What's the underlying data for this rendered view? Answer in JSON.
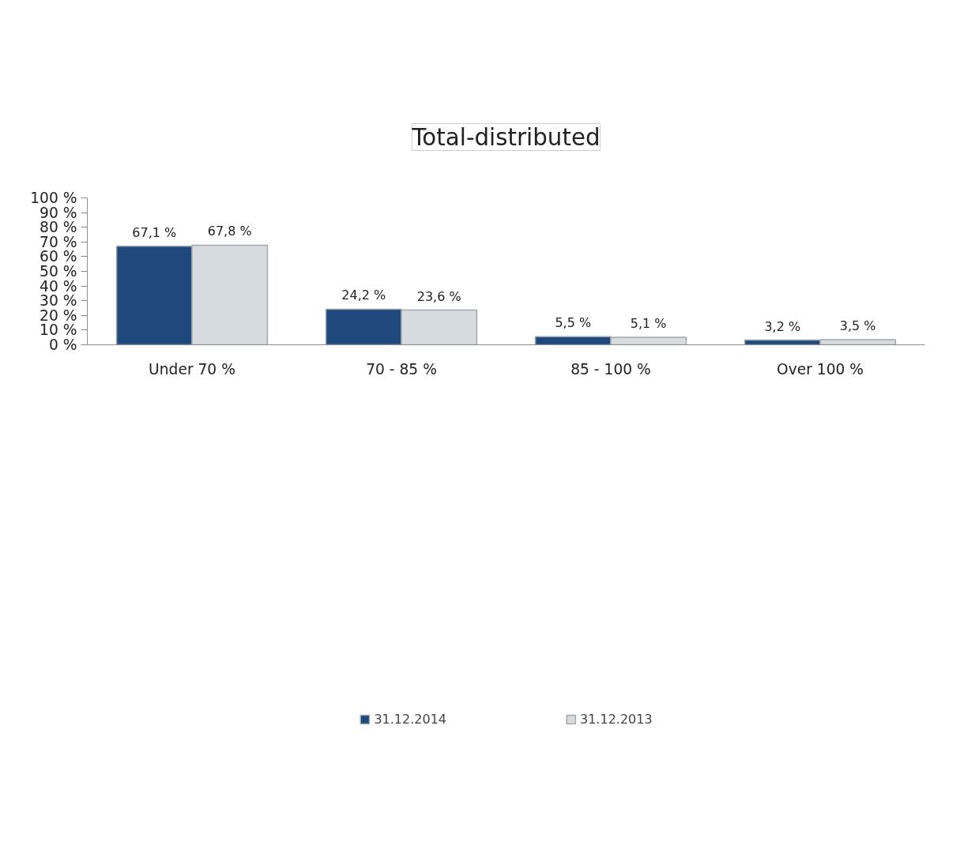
{
  "chart_data": {
    "type": "bar",
    "title": "Total-distributed",
    "categories": [
      "Under 70 %",
      "70 - 85 %",
      "85 - 100 %",
      "Over 100 %"
    ],
    "series": [
      {
        "name": "31.12.2014",
        "color": "#1f497d",
        "values": [
          67.1,
          24.2,
          5.5,
          3.2
        ],
        "value_labels": [
          "67,1 %",
          "24,2 %",
          "5,5 %",
          "3,2 %"
        ]
      },
      {
        "name": "31.12.2013",
        "color": "#d6dbdf",
        "values": [
          67.8,
          23.6,
          5.1,
          3.5
        ],
        "value_labels": [
          "67,8 %",
          "23,6 %",
          "5,1 %",
          "3,5 %"
        ]
      }
    ],
    "ylim": [
      0,
      100
    ],
    "yticks": [
      {
        "value": 0,
        "label": "0 %"
      },
      {
        "value": 10,
        "label": "10 %"
      },
      {
        "value": 20,
        "label": "20 %"
      },
      {
        "value": 30,
        "label": "30 %"
      },
      {
        "value": 40,
        "label": "40 %"
      },
      {
        "value": 50,
        "label": "50 %"
      },
      {
        "value": 60,
        "label": "60 %"
      },
      {
        "value": 70,
        "label": "70 %"
      },
      {
        "value": 80,
        "label": "80 %"
      },
      {
        "value": 90,
        "label": "90 %"
      },
      {
        "value": 100,
        "label": "100 %"
      }
    ],
    "grid": false,
    "legend": "bottom"
  }
}
